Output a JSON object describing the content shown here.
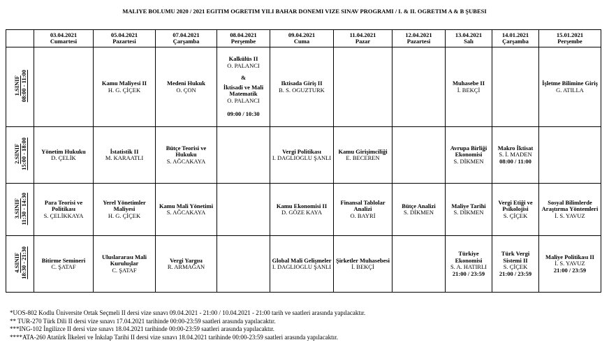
{
  "header": {
    "title": "MALIYE BOLUMU 2020 / 2021 EGITIM OGRETIM YILI BAHAR DONEMI VIZE SINAV PROGRAMI / I. & II. OGRETIM A & B ŞUBESI"
  },
  "schedule": {
    "columns": [
      {
        "date": "03.04.2021",
        "day": "Cumartesi"
      },
      {
        "date": "05.04.2021",
        "day": "Pazartesi"
      },
      {
        "date": "07.04.2021",
        "day": "Çarşamba"
      },
      {
        "date": "08.04.2021",
        "day": "Perşembe"
      },
      {
        "date": "09.04.2021",
        "day": "Cuma"
      },
      {
        "date": "11.04.2021",
        "day": "Pazar"
      },
      {
        "date": "12.04.2021",
        "day": "Pazartesi"
      },
      {
        "date": "13.04.2021",
        "day": "Salı"
      },
      {
        "date": "14.01.2021",
        "day": "Çarşamba"
      },
      {
        "date": "15.01.2021",
        "day": "Perşembe"
      }
    ],
    "rows": [
      {
        "label": {
          "class": "1.SINIF",
          "time": "08:00 - 11:00"
        },
        "cells": [
          null,
          {
            "exams": [
              {
                "course": "Kamu Maliyesi II",
                "teacher": "H. G. ÇİÇEK"
              }
            ]
          },
          {
            "exams": [
              {
                "course": "Medeni Hukuk",
                "teacher": "O. ÇON"
              }
            ]
          },
          {
            "exams": [
              {
                "course": "Kalkülüs II",
                "teacher": "O. PALANCI"
              },
              {
                "course": "İktisadi ve Mali Matematik",
                "teacher": "O. PALANCI"
              }
            ],
            "separator": "&",
            "time": "09:00 / 10:30"
          },
          {
            "exams": [
              {
                "course": "Iktisada Giriş II",
                "teacher": "B. S. OGUZTURK"
              }
            ]
          },
          null,
          null,
          {
            "exams": [
              {
                "course": "Muhasebe II",
                "teacher": "İ. BEKÇİ"
              }
            ]
          },
          null,
          {
            "exams": [
              {
                "course": "İşletme Bilimine Giriş",
                "teacher": "G. ATILLA"
              }
            ]
          }
        ]
      },
      {
        "label": {
          "class": "2.SINIF",
          "time": "15:00 - 18:00"
        },
        "cells": [
          {
            "exams": [
              {
                "course": "Yönetim Hukuku",
                "teacher": "D. ÇELİK"
              }
            ]
          },
          {
            "exams": [
              {
                "course": "İstatistik II",
                "teacher": "M. KARAATLI"
              }
            ]
          },
          {
            "exams": [
              {
                "course": "Bütçe Teorisi ve Hukuku",
                "teacher": "S. AĞCAKAYA"
              }
            ]
          },
          null,
          {
            "exams": [
              {
                "course": "Vergi Politikası",
                "teacher": "I. DAGLIOGLU ŞANLI"
              }
            ]
          },
          {
            "exams": [
              {
                "course": "Kamu Girişimciliği",
                "teacher": "E. BECEREN"
              }
            ]
          },
          null,
          {
            "exams": [
              {
                "course": "Avrupa Birliği Ekonomisi",
                "teacher": "S. DİKMEN"
              }
            ]
          },
          {
            "exams": [
              {
                "course": "Makro İktisat",
                "teacher": "S. İ. MADEN"
              }
            ],
            "time": "08:00 / 11:00"
          },
          null
        ]
      },
      {
        "label": {
          "class": "3.SINIF",
          "time": "11:30 - 14:30"
        },
        "cells": [
          {
            "exams": [
              {
                "course": "Para Teorisi ve Politikası",
                "teacher": "S. ÇELİKKAYA"
              }
            ]
          },
          {
            "exams": [
              {
                "course": "Yerel Yönetimler Maliyesi",
                "teacher": "H. G. ÇİÇEK"
              }
            ]
          },
          {
            "exams": [
              {
                "course": "Kamu Mali Yönetimi",
                "teacher": "S. AĞCAKAYA"
              }
            ]
          },
          null,
          {
            "exams": [
              {
                "course": "Kamu Ekonomisi II",
                "teacher": "D. GÖZE KAYA"
              }
            ]
          },
          {
            "exams": [
              {
                "course": "Finansal Tablolar Analizi",
                "teacher": "O. BAYRİ"
              }
            ]
          },
          {
            "exams": [
              {
                "course": "Bütçe Analizi",
                "teacher": "S. DİKMEN"
              }
            ]
          },
          {
            "exams": [
              {
                "course": "Maliye Tarihi",
                "teacher": "S. DİKMEN"
              }
            ]
          },
          {
            "exams": [
              {
                "course": "Vergi Etiği ve Psikolojisi",
                "teacher": "S. ÇİÇEK"
              }
            ]
          },
          {
            "exams": [
              {
                "course": "Sosyal Bilimlerde Araştırma Yöntemleri",
                "teacher": "İ. S. YAVUZ"
              }
            ]
          }
        ]
      },
      {
        "label": {
          "class": "4.SINIF",
          "time": "18:30 - 21:30"
        },
        "cells": [
          {
            "exams": [
              {
                "course": "Bitirme Semineri",
                "teacher": "C. ŞATAF"
              }
            ]
          },
          {
            "exams": [
              {
                "course": "Uluslararası Mali Kuruluşlar",
                "teacher": "C. ŞATAF"
              }
            ]
          },
          {
            "exams": [
              {
                "course": "Vergi Yargısı",
                "teacher": "R. ARMAĞAN"
              }
            ]
          },
          null,
          {
            "exams": [
              {
                "course": "Global Mali Gelişmeler",
                "teacher": "I. DAGLIOGLU ŞANLI"
              }
            ]
          },
          {
            "exams": [
              {
                "course": "Şirketler Muhasebesi",
                "teacher": "İ. BEKÇİ"
              }
            ]
          },
          null,
          {
            "exams": [
              {
                "course": "Türkiye Ekonomisi",
                "teacher": "S. A. HATIRLI"
              }
            ],
            "time": "21:00 / 23:59"
          },
          {
            "exams": [
              {
                "course": "Türk Vergi Sistemi II",
                "teacher": "S. ÇİÇEK"
              }
            ],
            "time": "21:00 / 23:59"
          },
          {
            "exams": [
              {
                "course": "Maliye Politikası II",
                "teacher": "İ. S. YAVUZ"
              }
            ],
            "time": "21:00 / 23:59"
          }
        ]
      }
    ]
  },
  "footnotes": [
    "*UOS-802 Kodlu Üniversite Ortak Seçmeli II dersi vize sınavı 09.04.2021 - 21:00 / 10.04.2021 - 21:00 tarih ve saatleri arasında yapılacaktır.",
    "** TUR-270 Türk Dili II dersi vize sınavı 17.04.2021 tarihinde 00:00-23:59 saatleri arasında yapılacaktır.",
    "***ING-102 İngilizce II dersi vize sınavı 18.04.2021 tarihinde 00:00-23:59 saatleri arasında yapılacaktır.",
    "****ATA-260 Atatürk İlkeleri ve İnkılap Tarihi II dersi vize sınavı 18.04.2021 tarihinde 00:00-23:59 saatleri arasında yapılacaktır."
  ]
}
